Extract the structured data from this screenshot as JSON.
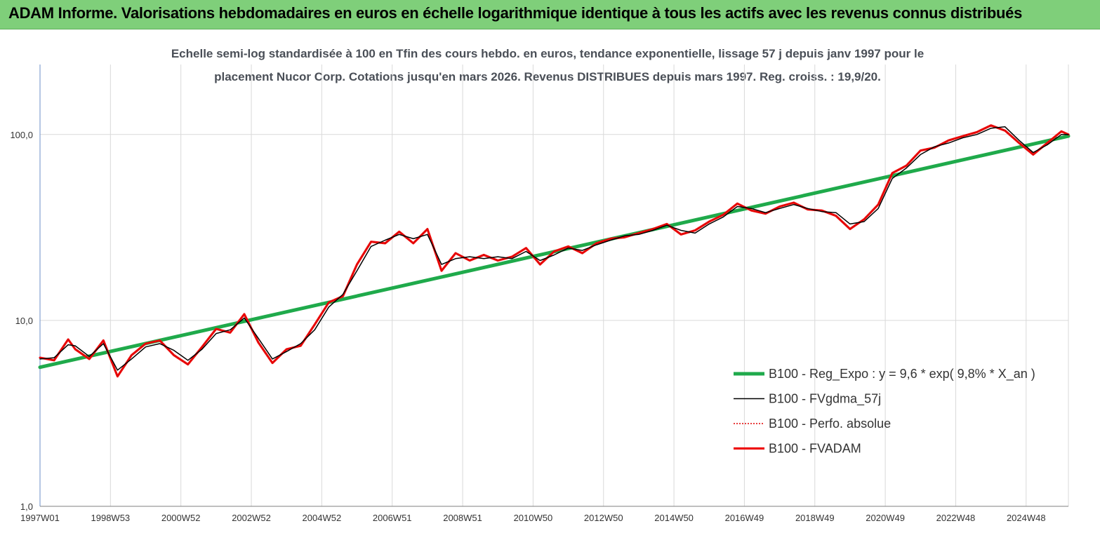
{
  "header": {
    "title": "ADAM Informe. Valorisations hebdomadaires en euros en échelle logarithmique identique à tous les actifs avec les revenus connus distribués"
  },
  "colors": {
    "header_bg": "#7fcf7a",
    "regression": "#1faa4b",
    "fvgdma": "#000000",
    "perfo": "#e00000",
    "fvadam": "#ee1111",
    "grid": "#d9d9d9"
  },
  "chart_data": {
    "type": "line",
    "title_line1": "Echelle semi-log standardisée à 100 en Tfin des cours hebdo. en euros, tendance exponentielle, lissage 57 j depuis janv 1997 pour le",
    "title_line2": "placement Nucor Corp. Cotations jusqu'en mars 2026. Revenus DISTRIBUES depuis mars 1997. Reg. croiss. : 19,9/20.",
    "y_scale": "log",
    "ylim": [
      1,
      200
    ],
    "y_ticks": [
      {
        "value": 1,
        "label": "1,0"
      },
      {
        "value": 10,
        "label": "10,0"
      },
      {
        "value": 100,
        "label": "100,0"
      }
    ],
    "x_range": [
      1997.0,
      2026.2
    ],
    "x_ticks": [
      {
        "label": "1997W01",
        "x": 1997.0
      },
      {
        "label": "1998W53",
        "x": 1999.0
      },
      {
        "label": "2000W52",
        "x": 2001.0
      },
      {
        "label": "2002W52",
        "x": 2003.0
      },
      {
        "label": "2004W52",
        "x": 2005.0
      },
      {
        "label": "2006W51",
        "x": 2007.0
      },
      {
        "label": "2008W51",
        "x": 2009.0
      },
      {
        "label": "2010W50",
        "x": 2011.0
      },
      {
        "label": "2012W50",
        "x": 2013.0
      },
      {
        "label": "2014W50",
        "x": 2015.0
      },
      {
        "label": "2016W49",
        "x": 2017.0
      },
      {
        "label": "2018W49",
        "x": 2019.0
      },
      {
        "label": "2020W49",
        "x": 2021.0
      },
      {
        "label": "2022W48",
        "x": 2023.0
      },
      {
        "label": "2024W48",
        "x": 2025.0
      }
    ],
    "grid": true,
    "legend_position": "bottom-right",
    "series": [
      {
        "name": "B100 - Reg_Expo : y = 9,6 *  exp( 9,8% *  X_an )",
        "style": "thick-green",
        "x": [
          1997.0,
          2026.2
        ],
        "y": [
          5.6,
          98
        ]
      },
      {
        "name": "B100 - FVgdma_57j",
        "style": "thin-black",
        "x": [
          1997.0,
          1997.4,
          1997.8,
          1998.0,
          1998.4,
          1998.8,
          1999.2,
          1999.6,
          2000.0,
          2000.4,
          2000.8,
          2001.2,
          2001.6,
          2002.0,
          2002.4,
          2002.8,
          2003.2,
          2003.6,
          2004.0,
          2004.4,
          2004.8,
          2005.2,
          2005.6,
          2006.0,
          2006.4,
          2006.8,
          2007.2,
          2007.6,
          2008.0,
          2008.4,
          2008.8,
          2009.2,
          2009.6,
          2010.0,
          2010.4,
          2010.8,
          2011.2,
          2011.6,
          2012.0,
          2012.4,
          2012.8,
          2013.2,
          2013.6,
          2014.0,
          2014.4,
          2014.8,
          2015.2,
          2015.6,
          2016.0,
          2016.4,
          2016.8,
          2017.2,
          2017.6,
          2018.0,
          2018.4,
          2018.8,
          2019.2,
          2019.6,
          2020.0,
          2020.4,
          2020.8,
          2021.2,
          2021.6,
          2022.0,
          2022.4,
          2022.8,
          2023.2,
          2023.6,
          2024.0,
          2024.4,
          2024.8,
          2025.2,
          2025.6,
          2026.0,
          2026.2
        ],
        "y": [
          6.2,
          6.3,
          7.4,
          7.3,
          6.4,
          7.5,
          5.4,
          6.2,
          7.2,
          7.5,
          6.9,
          6.1,
          7.0,
          8.5,
          8.9,
          10.3,
          8.0,
          6.2,
          6.8,
          7.5,
          8.9,
          11.8,
          13.8,
          18.5,
          25.0,
          27.0,
          29.0,
          27.5,
          29.0,
          20.0,
          21.5,
          22.0,
          21.5,
          22.0,
          21.5,
          23.5,
          21.0,
          22.5,
          24.5,
          23.8,
          25.5,
          27.0,
          28.5,
          29.0,
          30.5,
          32.5,
          30.5,
          29.5,
          33.0,
          36.0,
          41.0,
          40.0,
          38.0,
          40.0,
          42.0,
          40.0,
          38.5,
          38.0,
          33.0,
          34.0,
          40.0,
          58.0,
          66.0,
          78.0,
          86.0,
          90.0,
          96.0,
          100.0,
          108.0,
          110.0,
          93.0,
          80.0,
          88.0,
          100.0,
          100.0
        ]
      },
      {
        "name": "B100 - Perfo. absolue",
        "style": "dotted-red",
        "x": [
          1997.0,
          1997.4,
          1997.8,
          1998.0,
          1998.4,
          1998.8,
          1999.2,
          1999.6,
          2000.0,
          2000.4,
          2000.8,
          2001.2,
          2001.6,
          2002.0,
          2002.4,
          2002.8,
          2003.2,
          2003.6,
          2004.0,
          2004.4,
          2004.8,
          2005.2,
          2005.6,
          2006.0,
          2006.4,
          2006.8,
          2007.2,
          2007.6,
          2008.0,
          2008.4,
          2008.8,
          2009.2,
          2009.6,
          2010.0,
          2010.4,
          2010.8,
          2011.2,
          2011.6,
          2012.0,
          2012.4,
          2012.8,
          2013.2,
          2013.6,
          2014.0,
          2014.4,
          2014.8,
          2015.2,
          2015.6,
          2016.0,
          2016.4,
          2016.8,
          2017.2,
          2017.6,
          2018.0,
          2018.4,
          2018.8,
          2019.2,
          2019.6,
          2020.0,
          2020.4,
          2020.8,
          2021.2,
          2021.6,
          2022.0,
          2022.4,
          2022.8,
          2023.2,
          2023.6,
          2024.0,
          2024.4,
          2024.8,
          2025.2,
          2025.6,
          2026.0,
          2026.2
        ],
        "y": [
          6.3,
          6.1,
          7.9,
          7.0,
          6.2,
          7.8,
          5.0,
          6.5,
          7.5,
          7.8,
          6.5,
          5.8,
          7.2,
          9.0,
          8.6,
          10.8,
          7.6,
          5.9,
          7.0,
          7.3,
          9.5,
          12.5,
          13.5,
          20.0,
          26.5,
          26.0,
          30.0,
          26.0,
          31.0,
          18.5,
          23.0,
          21.0,
          22.5,
          21.0,
          22.0,
          24.5,
          20.0,
          23.5,
          25.0,
          23.0,
          26.0,
          27.5,
          28.0,
          29.5,
          31.0,
          33.0,
          29.0,
          30.5,
          34.0,
          37.0,
          42.5,
          39.0,
          37.5,
          41.0,
          43.0,
          39.5,
          39.0,
          36.5,
          31.0,
          35.0,
          42.0,
          62.0,
          68.0,
          82.0,
          85.0,
          93.0,
          98.0,
          103.0,
          112.0,
          105.0,
          90.0,
          78.0,
          90.0,
          104.0,
          100.0
        ]
      },
      {
        "name": "B100 - FVADAM",
        "style": "thick-red",
        "x": [
          1997.0,
          1997.4,
          1997.8,
          1998.0,
          1998.4,
          1998.8,
          1999.2,
          1999.6,
          2000.0,
          2000.4,
          2000.8,
          2001.2,
          2001.6,
          2002.0,
          2002.4,
          2002.8,
          2003.2,
          2003.6,
          2004.0,
          2004.4,
          2004.8,
          2005.2,
          2005.6,
          2006.0,
          2006.4,
          2006.8,
          2007.2,
          2007.6,
          2008.0,
          2008.4,
          2008.8,
          2009.2,
          2009.6,
          2010.0,
          2010.4,
          2010.8,
          2011.2,
          2011.6,
          2012.0,
          2012.4,
          2012.8,
          2013.2,
          2013.6,
          2014.0,
          2014.4,
          2014.8,
          2015.2,
          2015.6,
          2016.0,
          2016.4,
          2016.8,
          2017.2,
          2017.6,
          2018.0,
          2018.4,
          2018.8,
          2019.2,
          2019.6,
          2020.0,
          2020.4,
          2020.8,
          2021.2,
          2021.6,
          2022.0,
          2022.4,
          2022.8,
          2023.2,
          2023.6,
          2024.0,
          2024.4,
          2024.8,
          2025.2,
          2025.6,
          2026.0,
          2026.2
        ],
        "y": [
          6.3,
          6.1,
          7.9,
          7.0,
          6.2,
          7.8,
          5.0,
          6.5,
          7.5,
          7.8,
          6.5,
          5.8,
          7.2,
          9.0,
          8.6,
          10.8,
          7.6,
          5.9,
          7.0,
          7.3,
          9.5,
          12.5,
          13.5,
          20.0,
          26.5,
          26.0,
          30.0,
          26.0,
          31.0,
          18.5,
          23.0,
          21.0,
          22.5,
          21.0,
          22.0,
          24.5,
          20.0,
          23.5,
          25.0,
          23.0,
          26.0,
          27.5,
          28.0,
          29.5,
          31.0,
          33.0,
          29.0,
          30.5,
          34.0,
          37.0,
          42.5,
          39.0,
          37.5,
          41.0,
          43.0,
          39.5,
          39.0,
          36.5,
          31.0,
          35.0,
          42.0,
          62.0,
          68.0,
          82.0,
          85.0,
          93.0,
          98.0,
          103.0,
          112.0,
          105.0,
          90.0,
          78.0,
          90.0,
          104.0,
          100.0
        ]
      }
    ]
  }
}
